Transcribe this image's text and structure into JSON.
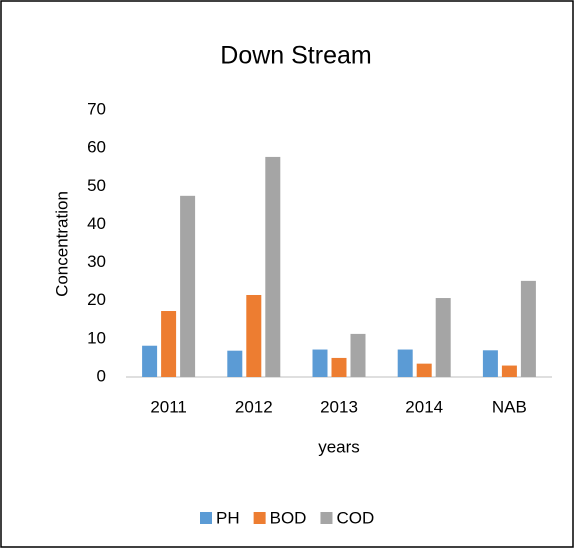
{
  "chart_data": {
    "type": "bar",
    "title": "Down Stream",
    "x_label": "years",
    "y_label": "Concentration",
    "categories": [
      "2011",
      "2012",
      "2013",
      "2014",
      "NAB"
    ],
    "series": [
      {
        "name": "PH",
        "color": "#5b9bd5",
        "values": [
          8.2,
          6.9,
          7.2,
          7.2,
          7
        ]
      },
      {
        "name": "BOD",
        "color": "#ed7d31",
        "values": [
          17.3,
          21.5,
          5,
          3.5,
          3
        ]
      },
      {
        "name": "COD",
        "color": "#a5a5a5",
        "values": [
          47.5,
          57.7,
          11.3,
          20.7,
          25.2
        ]
      }
    ],
    "ylim": [
      0,
      70
    ],
    "yticks": [
      0,
      10,
      20,
      30,
      40,
      50,
      60,
      70
    ],
    "grid": false,
    "legend": "bottom"
  }
}
